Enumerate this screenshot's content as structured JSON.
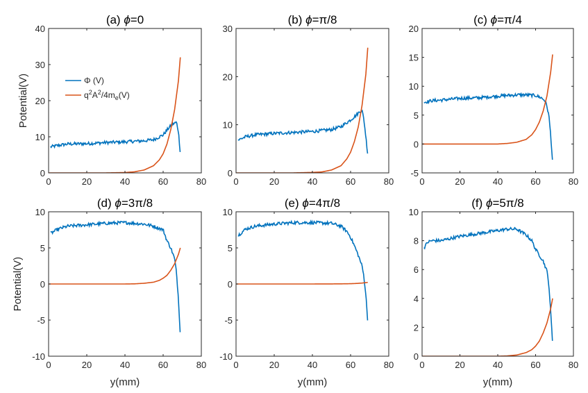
{
  "figure": {
    "xlabel": "y(mm)",
    "ylabel": "Potential(V)"
  },
  "colors": {
    "phi": "#0072BD",
    "ponderomotive": "#D95319",
    "axis": "#262626"
  },
  "legend": {
    "entries": [
      {
        "label": "Φ (V)",
        "series": "phi"
      },
      {
        "label_parts": [
          "q",
          "2",
          "A",
          "2",
          "/4m",
          "e",
          "(V)"
        ],
        "series": "ponderomotive"
      }
    ]
  },
  "chart_data": [
    {
      "type": "line",
      "title": "(a) ϕ=0",
      "title_prefix": "(a) ",
      "title_phi": "ϕ",
      "title_suffix": "=0",
      "xlim": [
        0,
        80
      ],
      "ylim": [
        0,
        40
      ],
      "xticks": [
        0,
        20,
        40,
        60,
        80
      ],
      "yticks": [
        0,
        10,
        20,
        30,
        40
      ],
      "series": [
        {
          "name": "Φ (V)",
          "x": [
            1,
            5,
            10,
            20,
            30,
            40,
            50,
            55,
            60,
            63,
            65,
            67,
            68,
            69
          ],
          "values": [
            7.2,
            7.6,
            8.0,
            8.1,
            8.4,
            8.6,
            8.9,
            9.2,
            10.5,
            12.5,
            13.5,
            14.0,
            11.5,
            5.5
          ]
        },
        {
          "name": "q²A²/4mₑ(V)",
          "x": [
            0,
            30,
            40,
            45,
            50,
            55,
            58,
            60,
            62,
            64,
            66,
            68,
            69
          ],
          "values": [
            0,
            0,
            0.1,
            0.3,
            0.8,
            2.0,
            3.6,
            5.3,
            8.0,
            12.0,
            17.5,
            25.5,
            32.0
          ]
        }
      ]
    },
    {
      "type": "line",
      "title": "(b) ϕ=π/8",
      "title_prefix": "(b) ",
      "title_phi": "ϕ",
      "title_suffix": "=π/8",
      "xlim": [
        0,
        80
      ],
      "ylim": [
        0,
        30
      ],
      "xticks": [
        0,
        20,
        40,
        60,
        80
      ],
      "yticks": [
        0,
        10,
        20,
        30
      ],
      "series": [
        {
          "name": "Φ (V)",
          "x": [
            1,
            5,
            10,
            20,
            30,
            40,
            50,
            55,
            60,
            63,
            65,
            66,
            67,
            68,
            69
          ],
          "values": [
            6.8,
            7.5,
            7.9,
            8.2,
            8.4,
            8.6,
            9.0,
            9.6,
            11.0,
            12.0,
            12.8,
            13.0,
            11.0,
            7.5,
            3.8
          ]
        },
        {
          "name": "q²A²/4mₑ(V)",
          "x": [
            0,
            30,
            40,
            45,
            50,
            55,
            58,
            60,
            62,
            64,
            66,
            68,
            69
          ],
          "values": [
            0,
            0,
            0.1,
            0.2,
            0.6,
            1.5,
            2.9,
            4.3,
            6.5,
            9.5,
            14.0,
            20.5,
            26.0
          ]
        }
      ]
    },
    {
      "type": "line",
      "title": "(c) ϕ=π/4",
      "title_prefix": "(c) ",
      "title_phi": "ϕ",
      "title_suffix": "=π/4",
      "xlim": [
        0,
        80
      ],
      "ylim": [
        -5,
        20
      ],
      "xticks": [
        0,
        20,
        40,
        60,
        80
      ],
      "yticks": [
        -5,
        0,
        5,
        10,
        15,
        20
      ],
      "series": [
        {
          "name": "Φ (V)",
          "x": [
            1,
            5,
            10,
            20,
            30,
            40,
            50,
            55,
            60,
            63,
            65,
            66,
            67,
            68,
            69
          ],
          "values": [
            7.2,
            7.5,
            7.6,
            7.9,
            8.0,
            8.3,
            8.5,
            8.5,
            8.4,
            8.0,
            7.5,
            6.5,
            5.0,
            1.5,
            -3.2
          ]
        },
        {
          "name": "q²A²/4mₑ(V)",
          "x": [
            0,
            40,
            45,
            50,
            55,
            58,
            60,
            62,
            64,
            66,
            68,
            69
          ],
          "values": [
            0,
            0,
            0.1,
            0.3,
            0.8,
            1.6,
            2.5,
            3.8,
            5.7,
            8.3,
            12.5,
            15.5
          ]
        }
      ]
    },
    {
      "type": "line",
      "title": "(d) ϕ=3π/8",
      "title_prefix": "(d) ",
      "title_phi": "ϕ",
      "title_suffix": "=3π/8",
      "xlim": [
        0,
        80
      ],
      "ylim": [
        -10,
        10
      ],
      "xticks": [
        0,
        20,
        40,
        60,
        80
      ],
      "yticks": [
        -10,
        -5,
        0,
        5,
        10
      ],
      "series": [
        {
          "name": "Φ (V)",
          "x": [
            1,
            5,
            10,
            20,
            30,
            40,
            50,
            55,
            60,
            62,
            64,
            66,
            67,
            68,
            69
          ],
          "values": [
            7.0,
            7.6,
            8.0,
            8.2,
            8.4,
            8.5,
            8.3,
            8.0,
            7.5,
            6.0,
            5.0,
            3.5,
            1.5,
            -2.0,
            -7.0
          ]
        },
        {
          "name": "q²A²/4mₑ(V)",
          "x": [
            0,
            40,
            45,
            50,
            55,
            58,
            60,
            62,
            64,
            66,
            68,
            69
          ],
          "values": [
            0,
            0,
            0.02,
            0.1,
            0.25,
            0.5,
            0.8,
            1.2,
            1.9,
            2.8,
            4.1,
            5.0
          ]
        }
      ]
    },
    {
      "type": "line",
      "title": "(e) ϕ=4π/8",
      "title_prefix": "(e) ",
      "title_phi": "ϕ",
      "title_suffix": "=4π/8",
      "xlim": [
        0,
        80
      ],
      "ylim": [
        -10,
        10
      ],
      "xticks": [
        0,
        20,
        40,
        60,
        80
      ],
      "yticks": [
        -10,
        -5,
        0,
        5,
        10
      ],
      "series": [
        {
          "name": "Φ (V)",
          "x": [
            1,
            5,
            10,
            20,
            30,
            40,
            50,
            55,
            58,
            60,
            62,
            64,
            66,
            67,
            68,
            69
          ],
          "values": [
            6.7,
            7.6,
            8.0,
            8.3,
            8.5,
            8.5,
            8.4,
            8.0,
            7.3,
            6.5,
            5.3,
            4.0,
            2.5,
            1.0,
            -1.5,
            -5.2
          ]
        },
        {
          "name": "q²A²/4mₑ(V)",
          "x": [
            0,
            40,
            50,
            55,
            60,
            62,
            64,
            66,
            68,
            69
          ],
          "values": [
            0,
            0,
            0.01,
            0.02,
            0.04,
            0.06,
            0.09,
            0.13,
            0.19,
            0.22
          ]
        }
      ]
    },
    {
      "type": "line",
      "title": "(f) ϕ=5π/8",
      "title_prefix": "(f) ",
      "title_phi": "ϕ",
      "title_suffix": "=5π/8",
      "xlim": [
        0,
        80
      ],
      "ylim": [
        0,
        10
      ],
      "xticks": [
        0,
        20,
        40,
        60,
        80
      ],
      "yticks": [
        0,
        2,
        4,
        6,
        8,
        10
      ],
      "series": [
        {
          "name": "Φ (V)",
          "x": [
            1,
            3,
            5,
            10,
            20,
            30,
            40,
            45,
            50,
            55,
            58,
            60,
            62,
            64,
            66,
            67,
            68,
            69
          ],
          "values": [
            7.5,
            7.9,
            8.0,
            8.0,
            8.3,
            8.5,
            8.7,
            8.8,
            8.8,
            8.4,
            8.0,
            7.4,
            7.0,
            6.6,
            5.9,
            5.0,
            3.0,
            0.9
          ]
        },
        {
          "name": "q²A²/4mₑ(V)",
          "x": [
            0,
            40,
            45,
            50,
            55,
            58,
            60,
            62,
            64,
            66,
            68,
            69
          ],
          "values": [
            0,
            0,
            0.02,
            0.08,
            0.25,
            0.45,
            0.7,
            1.05,
            1.6,
            2.3,
            3.3,
            4.0
          ]
        }
      ]
    }
  ]
}
